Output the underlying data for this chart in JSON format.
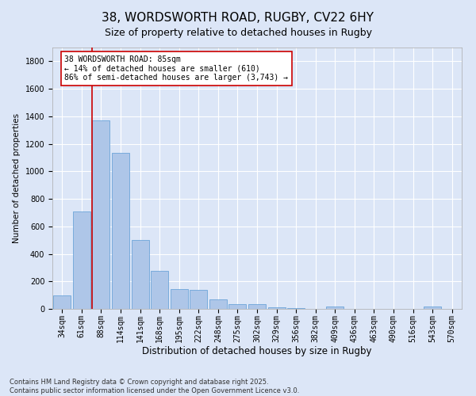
{
  "title1": "38, WORDSWORTH ROAD, RUGBY, CV22 6HY",
  "title2": "Size of property relative to detached houses in Rugby",
  "xlabel": "Distribution of detached houses by size in Rugby",
  "ylabel": "Number of detached properties",
  "bin_labels": [
    "34sqm",
    "61sqm",
    "88sqm",
    "114sqm",
    "141sqm",
    "168sqm",
    "195sqm",
    "222sqm",
    "248sqm",
    "275sqm",
    "302sqm",
    "329sqm",
    "356sqm",
    "382sqm",
    "409sqm",
    "436sqm",
    "463sqm",
    "490sqm",
    "516sqm",
    "543sqm",
    "570sqm"
  ],
  "bar_heights": [
    100,
    710,
    1370,
    1135,
    500,
    275,
    145,
    140,
    70,
    35,
    35,
    10,
    8,
    0,
    15,
    0,
    0,
    0,
    0,
    18,
    0
  ],
  "bar_color": "#aec6e8",
  "bar_edge_color": "#5b9bd5",
  "background_color": "#dce6f7",
  "grid_color": "#ffffff",
  "vline_color": "#cc0000",
  "annotation_text": "38 WORDSWORTH ROAD: 85sqm\n← 14% of detached houses are smaller (610)\n86% of semi-detached houses are larger (3,743) →",
  "annotation_box_color": "#ffffff",
  "annotation_box_edge": "#cc0000",
  "footnote": "Contains HM Land Registry data © Crown copyright and database right 2025.\nContains public sector information licensed under the Open Government Licence v3.0.",
  "ylim": [
    0,
    1900
  ],
  "yticks": [
    0,
    200,
    400,
    600,
    800,
    1000,
    1200,
    1400,
    1600,
    1800
  ],
  "title1_fontsize": 11,
  "title2_fontsize": 9,
  "xlabel_fontsize": 8.5,
  "ylabel_fontsize": 7.5,
  "tick_fontsize": 7,
  "annotation_fontsize": 7,
  "footnote_fontsize": 6
}
